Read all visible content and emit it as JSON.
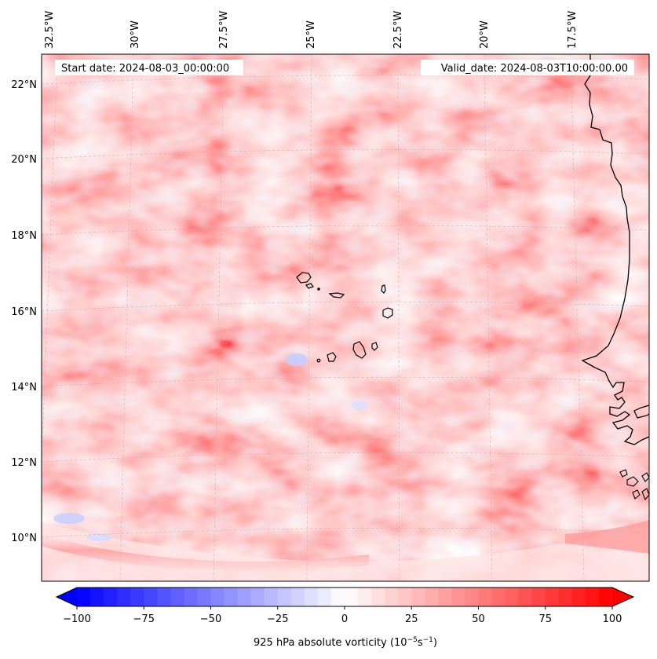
{
  "map": {
    "type": "contour-map",
    "projection": "lambert-conformal",
    "field": "925 hPa absolute vorticity",
    "start_label": "Start date: 2024-08-03_00:00:00",
    "valid_label": "Valid_date: 2024-08-03T10:00:00.00",
    "lon_labels": [
      "32.5°W",
      "30°W",
      "27.5°W",
      "25°W",
      "22.5°W",
      "20°W",
      "17.5°W"
    ],
    "lat_labels": [
      "22°N",
      "20°N",
      "18°N",
      "16°N",
      "14°N",
      "12°N",
      "10°N"
    ],
    "lon_values": [
      -32.5,
      -30,
      -27.5,
      -25,
      -22.5,
      -20,
      -17.5
    ],
    "lat_values": [
      22,
      20,
      18,
      16,
      14,
      12,
      10
    ],
    "islands": [
      "Santo Antão",
      "São Vicente",
      "São Nicolau",
      "Sal",
      "Boa Vista",
      "Maio",
      "Santiago",
      "Fogo",
      "Brava"
    ],
    "coastline": "West Africa (Mauritania, Senegal, Gambia, Guinea-Bissau)"
  },
  "colorbar": {
    "label_main": "925 hPa absolute vorticity (10",
    "label_exp1": "−5",
    "label_mid": "s",
    "label_exp2": "−1",
    "label_end": ")",
    "min": -100,
    "max": 100,
    "tick_labels": [
      "−100",
      "−75",
      "−50",
      "−25",
      "0",
      "25",
      "50",
      "75",
      "100"
    ],
    "tick_values": [
      -100,
      -75,
      -50,
      -25,
      0,
      25,
      50,
      75,
      100
    ],
    "levels": 40,
    "colormap": "bwr",
    "color_min": "#0000ff",
    "color_mid": "#ffffff",
    "color_max": "#ff0000"
  }
}
